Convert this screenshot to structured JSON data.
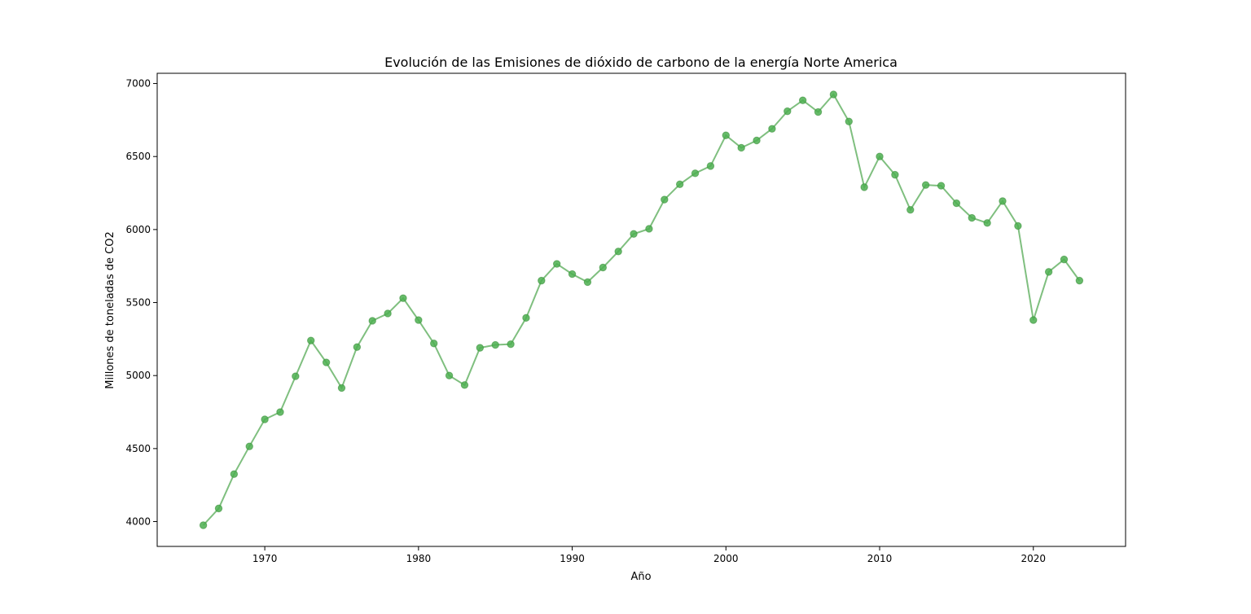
{
  "chart_data": {
    "type": "line",
    "title": "Evolución de las Emisiones de dióxido de carbono de la energía Norte America",
    "xlabel": "Año",
    "ylabel": "Millones de toneladas de CO2",
    "xlim": [
      1963,
      2026
    ],
    "ylim": [
      3830,
      7070
    ],
    "x_ticks": [
      1970,
      1980,
      1990,
      2000,
      2010,
      2020
    ],
    "y_ticks": [
      4000,
      4500,
      5000,
      5500,
      6000,
      6500,
      7000
    ],
    "grid": false,
    "line_color": "#7fbf7f",
    "marker_color": "#4caf50",
    "series": [
      {
        "x": [
          1966,
          1967,
          1968,
          1969,
          1970,
          1971,
          1972,
          1973,
          1974,
          1975,
          1976,
          1977,
          1978,
          1979,
          1980,
          1981,
          1982,
          1983,
          1984,
          1985,
          1986,
          1987,
          1988,
          1989,
          1990,
          1991,
          1992,
          1993,
          1994,
          1995,
          1996,
          1997,
          1998,
          1999,
          2000,
          2001,
          2002,
          2003,
          2004,
          2005,
          2006,
          2007,
          2008,
          2009,
          2010,
          2011,
          2012,
          2013,
          2014,
          2015,
          2016,
          2017,
          2018,
          2019,
          2020,
          2021,
          2022,
          2023
        ],
        "values": [
          3975,
          4090,
          4325,
          4515,
          4700,
          4750,
          4995,
          5240,
          5090,
          4915,
          5195,
          5375,
          5425,
          5530,
          5380,
          5220,
          5000,
          4935,
          5190,
          5210,
          5215,
          5395,
          5650,
          5765,
          5695,
          5640,
          5740,
          5850,
          5970,
          6005,
          6205,
          6310,
          6385,
          6435,
          6645,
          6560,
          6610,
          6690,
          6810,
          6885,
          6805,
          6925,
          6740,
          6290,
          6500,
          6375,
          6135,
          6305,
          6300,
          6180,
          6080,
          6045,
          6195,
          6025,
          5380,
          5710,
          5795,
          5650
        ]
      }
    ]
  }
}
